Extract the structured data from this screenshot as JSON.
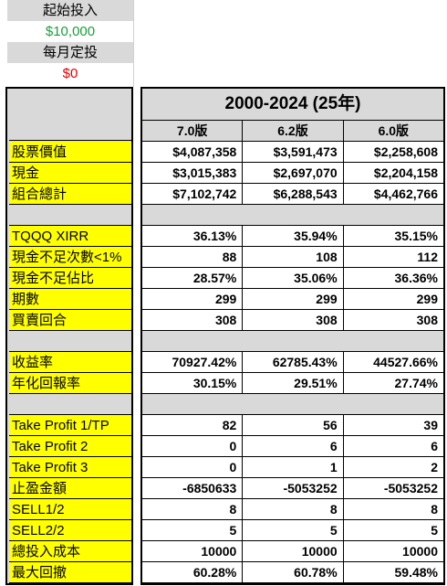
{
  "top": {
    "start_label": "起始投入",
    "start_value": "$10,000",
    "monthly_label": "每月定投",
    "monthly_value": "$0"
  },
  "header": {
    "title": "2000-2024 (25年)",
    "columns": [
      "7.0版",
      "6.2版",
      "6.0版"
    ]
  },
  "rows": [
    {
      "label": "股票價值",
      "values": [
        "$4,087,358",
        "$3,591,473",
        "$2,258,608"
      ]
    },
    {
      "label": "現金",
      "values": [
        "$3,015,383",
        "$2,697,070",
        "$2,204,158"
      ]
    },
    {
      "label": "組合總計",
      "values": [
        "$7,102,742",
        "$6,288,543",
        "$4,462,766"
      ]
    },
    {
      "label": "",
      "values": [
        "",
        "",
        ""
      ]
    },
    {
      "label": "TQQQ XIRR",
      "values": [
        "36.13%",
        "35.94%",
        "35.15%"
      ]
    },
    {
      "label": "現金不足次數<1%",
      "values": [
        "88",
        "108",
        "112"
      ]
    },
    {
      "label": "現金不足佔比",
      "values": [
        "28.57%",
        "35.06%",
        "36.36%"
      ]
    },
    {
      "label": "期數",
      "values": [
        "299",
        "299",
        "299"
      ]
    },
    {
      "label": "買賣回合",
      "values": [
        "308",
        "308",
        "308"
      ]
    },
    {
      "label": "",
      "values": [
        "",
        "",
        ""
      ]
    },
    {
      "label": "收益率",
      "values": [
        "70927.42%",
        "62785.43%",
        "44527.66%"
      ]
    },
    {
      "label": "年化回報率",
      "values": [
        "30.15%",
        "29.51%",
        "27.74%"
      ]
    },
    {
      "label": "",
      "values": [
        "",
        "",
        ""
      ]
    },
    {
      "label": "Take Profit 1/TP",
      "values": [
        "82",
        "56",
        "39"
      ]
    },
    {
      "label": "Take Profit 2",
      "values": [
        "0",
        "6",
        "6"
      ]
    },
    {
      "label": "Take Profit 3",
      "values": [
        "0",
        "1",
        "2"
      ]
    },
    {
      "label": "止盈金額",
      "values": [
        "-6850633",
        "-5053252",
        "-5053252"
      ]
    },
    {
      "label": "SELL1/2",
      "values": [
        "8",
        "8",
        "8"
      ]
    },
    {
      "label": "SELL2/2",
      "values": [
        "5",
        "5",
        "5"
      ]
    },
    {
      "label": "總投入成本",
      "values": [
        "10000",
        "10000",
        "10000"
      ]
    },
    {
      "label": "最大回撤",
      "values": [
        "60.28%",
        "60.78%",
        "59.48%"
      ]
    }
  ]
}
